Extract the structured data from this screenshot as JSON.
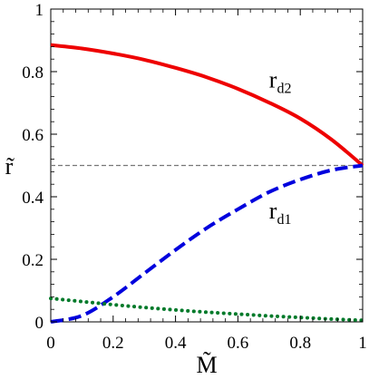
{
  "chart_data": {
    "type": "line",
    "xlabel": "M̃",
    "ylabel": "r̃",
    "xlim": [
      0,
      1
    ],
    "ylim": [
      0,
      1
    ],
    "xticks": [
      "0",
      "0.2",
      "0.4",
      "0.6",
      "0.8",
      "1"
    ],
    "yticks": [
      "0",
      "0.2",
      "0.4",
      "0.6",
      "0.8",
      "1"
    ],
    "grid": false,
    "reference_line": {
      "y": 0.5,
      "style": "dashed",
      "color": "#777777"
    },
    "series": [
      {
        "id": "rd2",
        "color": "#ee0000",
        "style": "solid",
        "x": [
          0,
          0.1,
          0.2,
          0.3,
          0.4,
          0.5,
          0.6,
          0.7,
          0.8,
          0.9,
          1.0
        ],
        "y": [
          0.885,
          0.874,
          0.858,
          0.838,
          0.812,
          0.782,
          0.745,
          0.701,
          0.65,
          0.583,
          0.5
        ]
      },
      {
        "id": "rd1",
        "color": "#0000dd",
        "style": "dashed",
        "x": [
          0,
          0.1,
          0.2,
          0.3,
          0.4,
          0.5,
          0.6,
          0.7,
          0.8,
          0.9,
          1.0
        ],
        "y": [
          0.0,
          0.02,
          0.08,
          0.155,
          0.23,
          0.3,
          0.36,
          0.415,
          0.455,
          0.485,
          0.5
        ]
      },
      {
        "id": "green-dotted",
        "color": "#007a2a",
        "style": "dotted",
        "x": [
          0,
          0.1,
          0.2,
          0.3,
          0.4,
          0.5,
          0.6,
          0.7,
          0.8,
          0.9,
          1.0
        ],
        "y": [
          0.075,
          0.065,
          0.055,
          0.046,
          0.038,
          0.031,
          0.025,
          0.019,
          0.014,
          0.009,
          0.005
        ]
      }
    ],
    "annotations": [
      {
        "series": "rd2",
        "main": "r",
        "sub": "d2",
        "at": [
          0.7,
          0.75
        ]
      },
      {
        "series": "rd1",
        "main": "r",
        "sub": "d1",
        "at": [
          0.7,
          0.33
        ]
      }
    ]
  }
}
